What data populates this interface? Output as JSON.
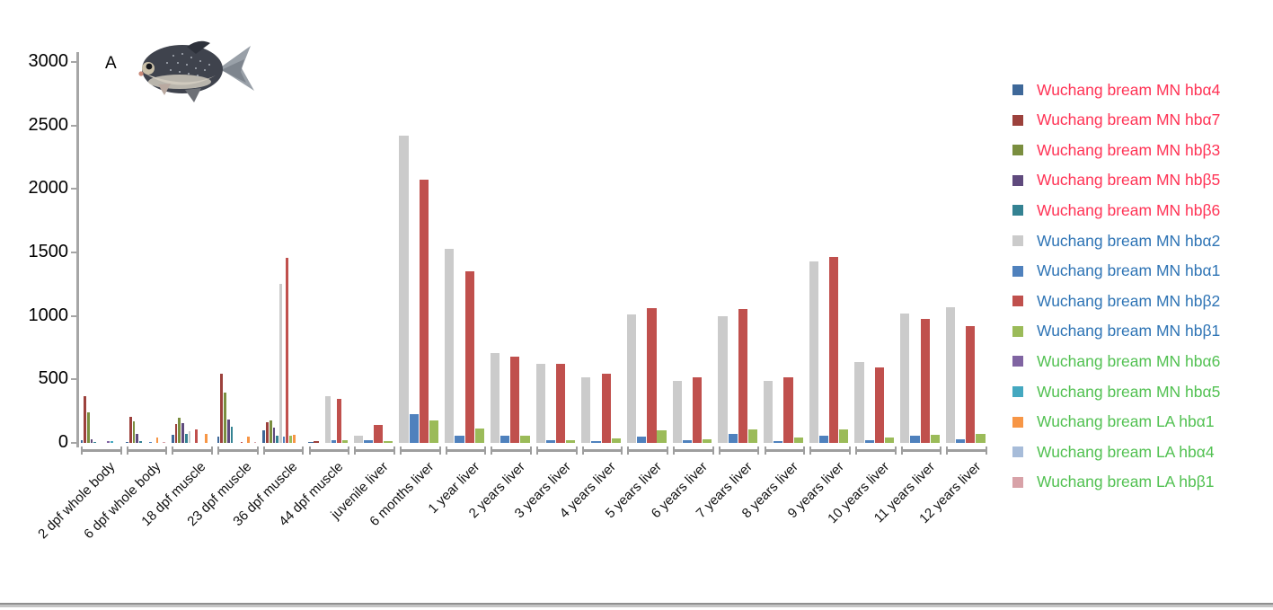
{
  "chart_data": {
    "type": "bar",
    "panel_label": "A",
    "title": "",
    "xlabel": "",
    "ylabel": "",
    "ylim": [
      0,
      3000
    ],
    "yticks": [
      0,
      500,
      1000,
      1500,
      2000,
      2500,
      3000
    ],
    "grid": false,
    "legend_position": "right",
    "series": [
      {
        "key": "mn_hba4",
        "label": "Wuchang bream MN hbα4",
        "color": "#3E6899",
        "label_color": "#FF3355"
      },
      {
        "key": "mn_hba7",
        "label": "Wuchang bream MN hbα7",
        "color": "#9C413C",
        "label_color": "#FF3355"
      },
      {
        "key": "mn_hbb3",
        "label": "Wuchang bream MN hbβ3",
        "color": "#7A8E3F",
        "label_color": "#FF3355"
      },
      {
        "key": "mn_hbb5",
        "label": "Wuchang bream MN hbβ5",
        "color": "#5F4A7D",
        "label_color": "#FF3355"
      },
      {
        "key": "mn_hbb6",
        "label": "Wuchang bream MN hbβ6",
        "color": "#348292",
        "label_color": "#FF3355"
      },
      {
        "key": "mn_hba2",
        "label": "Wuchang bream MN hbα2",
        "color": "#CBCBCB",
        "label_color": "#2E74B5"
      },
      {
        "key": "mn_hba1",
        "label": "Wuchang bream MN hbα1",
        "color": "#4F81BD",
        "label_color": "#2E74B5"
      },
      {
        "key": "mn_hbb2",
        "label": "Wuchang bream MN hbβ2",
        "color": "#C0504D",
        "label_color": "#2E74B5"
      },
      {
        "key": "mn_hbb1",
        "label": "Wuchang bream MN hbβ1",
        "color": "#9BBB59",
        "label_color": "#2E74B5"
      },
      {
        "key": "mn_hba6",
        "label": "Wuchang bream MN hbα6",
        "color": "#8064A2",
        "label_color": "#52C152"
      },
      {
        "key": "mn_hba5",
        "label": "Wuchang bream MN hbα5",
        "color": "#44A8C0",
        "label_color": "#52C152"
      },
      {
        "key": "la_hba1",
        "label": "Wuchang bream LA hbα1",
        "color": "#F79646",
        "label_color": "#52C152"
      },
      {
        "key": "la_hba4",
        "label": "Wuchang bream LA hbα4",
        "color": "#A7BCD9",
        "label_color": "#52C152"
      },
      {
        "key": "la_hbb1",
        "label": "Wuchang bream LA hbβ1",
        "color": "#D8A2A8",
        "label_color": "#52C152"
      }
    ],
    "groups": [
      {
        "label": "2 dpf whole body",
        "slots": 12,
        "bars": [
          {
            "s": "mn_hba4",
            "slot": 0,
            "v": 22
          },
          {
            "s": "mn_hba7",
            "slot": 1,
            "v": 370
          },
          {
            "s": "mn_hbb3",
            "slot": 2,
            "v": 240
          },
          {
            "s": "mn_hbb5",
            "slot": 3,
            "v": 30
          },
          {
            "s": "mn_hbb6",
            "slot": 4,
            "v": 6
          },
          {
            "s": "mn_hba6",
            "slot": 8,
            "v": 15
          },
          {
            "s": "mn_hba5",
            "slot": 9,
            "v": 12
          }
        ]
      },
      {
        "label": "6 dpf whole body",
        "slots": 12,
        "bars": [
          {
            "s": "mn_hba4",
            "slot": 0,
            "v": 8
          },
          {
            "s": "mn_hba7",
            "slot": 1,
            "v": 205
          },
          {
            "s": "mn_hbb3",
            "slot": 2,
            "v": 170
          },
          {
            "s": "mn_hbb5",
            "slot": 3,
            "v": 70
          },
          {
            "s": "mn_hbb6",
            "slot": 4,
            "v": 12
          },
          {
            "s": "mn_hba1",
            "slot": 7,
            "v": 8
          },
          {
            "s": "la_hba1",
            "slot": 9,
            "v": 45
          },
          {
            "s": "la_hbb1",
            "slot": 11,
            "v": 7
          }
        ]
      },
      {
        "label": "18 dpf muscle",
        "slots": 12,
        "bars": [
          {
            "s": "mn_hba4",
            "slot": 0,
            "v": 65
          },
          {
            "s": "mn_hba7",
            "slot": 1,
            "v": 150
          },
          {
            "s": "mn_hbb3",
            "slot": 2,
            "v": 200
          },
          {
            "s": "mn_hbb5",
            "slot": 3,
            "v": 155
          },
          {
            "s": "mn_hbb6",
            "slot": 4,
            "v": 70
          },
          {
            "s": "mn_hba2",
            "slot": 5,
            "v": 95
          },
          {
            "s": "mn_hbb2",
            "slot": 7,
            "v": 105
          },
          {
            "s": "la_hba1",
            "slot": 10,
            "v": 70
          }
        ]
      },
      {
        "label": "23 dpf muscle",
        "slots": 12,
        "bars": [
          {
            "s": "mn_hba4",
            "slot": 0,
            "v": 48
          },
          {
            "s": "mn_hba7",
            "slot": 1,
            "v": 545
          },
          {
            "s": "mn_hbb3",
            "slot": 2,
            "v": 400
          },
          {
            "s": "mn_hbb5",
            "slot": 3,
            "v": 185
          },
          {
            "s": "mn_hbb6",
            "slot": 4,
            "v": 130
          },
          {
            "s": "mn_hbb2",
            "slot": 7,
            "v": 10
          },
          {
            "s": "la_hba1",
            "slot": 9,
            "v": 48
          },
          {
            "s": "la_hbb1",
            "slot": 11,
            "v": 6
          }
        ]
      },
      {
        "label": "36 dpf muscle",
        "slots": 12,
        "bars": [
          {
            "s": "mn_hba4",
            "slot": 0,
            "v": 100
          },
          {
            "s": "mn_hba7",
            "slot": 1,
            "v": 165
          },
          {
            "s": "mn_hbb3",
            "slot": 2,
            "v": 180
          },
          {
            "s": "mn_hbb5",
            "slot": 3,
            "v": 120
          },
          {
            "s": "mn_hbb6",
            "slot": 4,
            "v": 60
          },
          {
            "s": "mn_hba2",
            "slot": 5,
            "v": 1250
          },
          {
            "s": "mn_hba1",
            "slot": 6,
            "v": 48
          },
          {
            "s": "mn_hbb2",
            "slot": 7,
            "v": 1460
          },
          {
            "s": "mn_hbb1",
            "slot": 8,
            "v": 60
          },
          {
            "s": "la_hba1",
            "slot": 9,
            "v": 65
          }
        ]
      },
      {
        "label": "44 dpf muscle",
        "slots": 7,
        "bars": [
          {
            "s": "mn_hba4",
            "slot": 0,
            "v": 10
          },
          {
            "s": "mn_hba7",
            "slot": 1,
            "v": 12
          },
          {
            "s": "mn_hba2",
            "slot": 3,
            "v": 370
          },
          {
            "s": "mn_hba1",
            "slot": 4,
            "v": 25
          },
          {
            "s": "mn_hbb2",
            "slot": 5,
            "v": 345
          },
          {
            "s": "mn_hbb1",
            "slot": 6,
            "v": 20
          }
        ]
      },
      {
        "label": "juvenile liver",
        "slots": 4,
        "bars": [
          {
            "s": "mn_hba2",
            "slot": 0,
            "v": 55
          },
          {
            "s": "mn_hba1",
            "slot": 1,
            "v": 20
          },
          {
            "s": "mn_hbb2",
            "slot": 2,
            "v": 140
          },
          {
            "s": "mn_hbb1",
            "slot": 3,
            "v": 15
          }
        ]
      },
      {
        "label": "6 months liver",
        "slots": 4,
        "bars": [
          {
            "s": "mn_hba2",
            "slot": 0,
            "v": 2420
          },
          {
            "s": "mn_hba1",
            "slot": 1,
            "v": 225
          },
          {
            "s": "mn_hbb2",
            "slot": 2,
            "v": 2070
          },
          {
            "s": "mn_hbb1",
            "slot": 3,
            "v": 180
          }
        ]
      },
      {
        "label": "1 year liver",
        "slots": 4,
        "bars": [
          {
            "s": "mn_hba2",
            "slot": 0,
            "v": 1530
          },
          {
            "s": "mn_hba1",
            "slot": 1,
            "v": 55
          },
          {
            "s": "mn_hbb2",
            "slot": 2,
            "v": 1350
          },
          {
            "s": "mn_hbb1",
            "slot": 3,
            "v": 115
          }
        ]
      },
      {
        "label": "2 years liver",
        "slots": 4,
        "bars": [
          {
            "s": "mn_hba2",
            "slot": 0,
            "v": 710
          },
          {
            "s": "mn_hba1",
            "slot": 1,
            "v": 55
          },
          {
            "s": "mn_hbb2",
            "slot": 2,
            "v": 680
          },
          {
            "s": "mn_hbb1",
            "slot": 3,
            "v": 60
          }
        ]
      },
      {
        "label": "3 years liver",
        "slots": 4,
        "bars": [
          {
            "s": "mn_hba2",
            "slot": 0,
            "v": 620
          },
          {
            "s": "mn_hba1",
            "slot": 1,
            "v": 20
          },
          {
            "s": "mn_hbb2",
            "slot": 2,
            "v": 625
          },
          {
            "s": "mn_hbb1",
            "slot": 3,
            "v": 25
          }
        ]
      },
      {
        "label": "4 years liver",
        "slots": 4,
        "bars": [
          {
            "s": "mn_hba2",
            "slot": 0,
            "v": 515
          },
          {
            "s": "mn_hba1",
            "slot": 1,
            "v": 15
          },
          {
            "s": "mn_hbb2",
            "slot": 2,
            "v": 545
          },
          {
            "s": "mn_hbb1",
            "slot": 3,
            "v": 35
          }
        ]
      },
      {
        "label": "5 years liver",
        "slots": 4,
        "bars": [
          {
            "s": "mn_hba2",
            "slot": 0,
            "v": 1010
          },
          {
            "s": "mn_hba1",
            "slot": 1,
            "v": 50
          },
          {
            "s": "mn_hbb2",
            "slot": 2,
            "v": 1065
          },
          {
            "s": "mn_hbb1",
            "slot": 3,
            "v": 100
          }
        ]
      },
      {
        "label": "6 years liver",
        "slots": 4,
        "bars": [
          {
            "s": "mn_hba2",
            "slot": 0,
            "v": 490
          },
          {
            "s": "mn_hba1",
            "slot": 1,
            "v": 20
          },
          {
            "s": "mn_hbb2",
            "slot": 2,
            "v": 515
          },
          {
            "s": "mn_hbb1",
            "slot": 3,
            "v": 30
          }
        ]
      },
      {
        "label": "7 years liver",
        "slots": 4,
        "bars": [
          {
            "s": "mn_hba2",
            "slot": 0,
            "v": 1000
          },
          {
            "s": "mn_hba1",
            "slot": 1,
            "v": 70
          },
          {
            "s": "mn_hbb2",
            "slot": 2,
            "v": 1055
          },
          {
            "s": "mn_hbb1",
            "slot": 3,
            "v": 110
          }
        ]
      },
      {
        "label": "8 years liver",
        "slots": 4,
        "bars": [
          {
            "s": "mn_hba2",
            "slot": 0,
            "v": 490
          },
          {
            "s": "mn_hba1",
            "slot": 1,
            "v": 15
          },
          {
            "s": "mn_hbb2",
            "slot": 2,
            "v": 515
          },
          {
            "s": "mn_hbb1",
            "slot": 3,
            "v": 40
          }
        ]
      },
      {
        "label": "9 years liver",
        "slots": 4,
        "bars": [
          {
            "s": "mn_hba2",
            "slot": 0,
            "v": 1430
          },
          {
            "s": "mn_hba1",
            "slot": 1,
            "v": 60
          },
          {
            "s": "mn_hbb2",
            "slot": 2,
            "v": 1465
          },
          {
            "s": "mn_hbb1",
            "slot": 3,
            "v": 110
          }
        ]
      },
      {
        "label": "10 years liver",
        "slots": 4,
        "bars": [
          {
            "s": "mn_hba2",
            "slot": 0,
            "v": 640
          },
          {
            "s": "mn_hba1",
            "slot": 1,
            "v": 20
          },
          {
            "s": "mn_hbb2",
            "slot": 2,
            "v": 595
          },
          {
            "s": "mn_hbb1",
            "slot": 3,
            "v": 45
          }
        ]
      },
      {
        "label": "11 years liver",
        "slots": 4,
        "bars": [
          {
            "s": "mn_hba2",
            "slot": 0,
            "v": 1020
          },
          {
            "s": "mn_hba1",
            "slot": 1,
            "v": 55
          },
          {
            "s": "mn_hbb2",
            "slot": 2,
            "v": 980
          },
          {
            "s": "mn_hbb1",
            "slot": 3,
            "v": 65
          }
        ]
      },
      {
        "label": "12 years liver",
        "slots": 4,
        "bars": [
          {
            "s": "mn_hba2",
            "slot": 0,
            "v": 1070
          },
          {
            "s": "mn_hba1",
            "slot": 1,
            "v": 30
          },
          {
            "s": "mn_hbb2",
            "slot": 2,
            "v": 920
          },
          {
            "s": "mn_hbb1",
            "slot": 3,
            "v": 70
          }
        ]
      }
    ]
  }
}
